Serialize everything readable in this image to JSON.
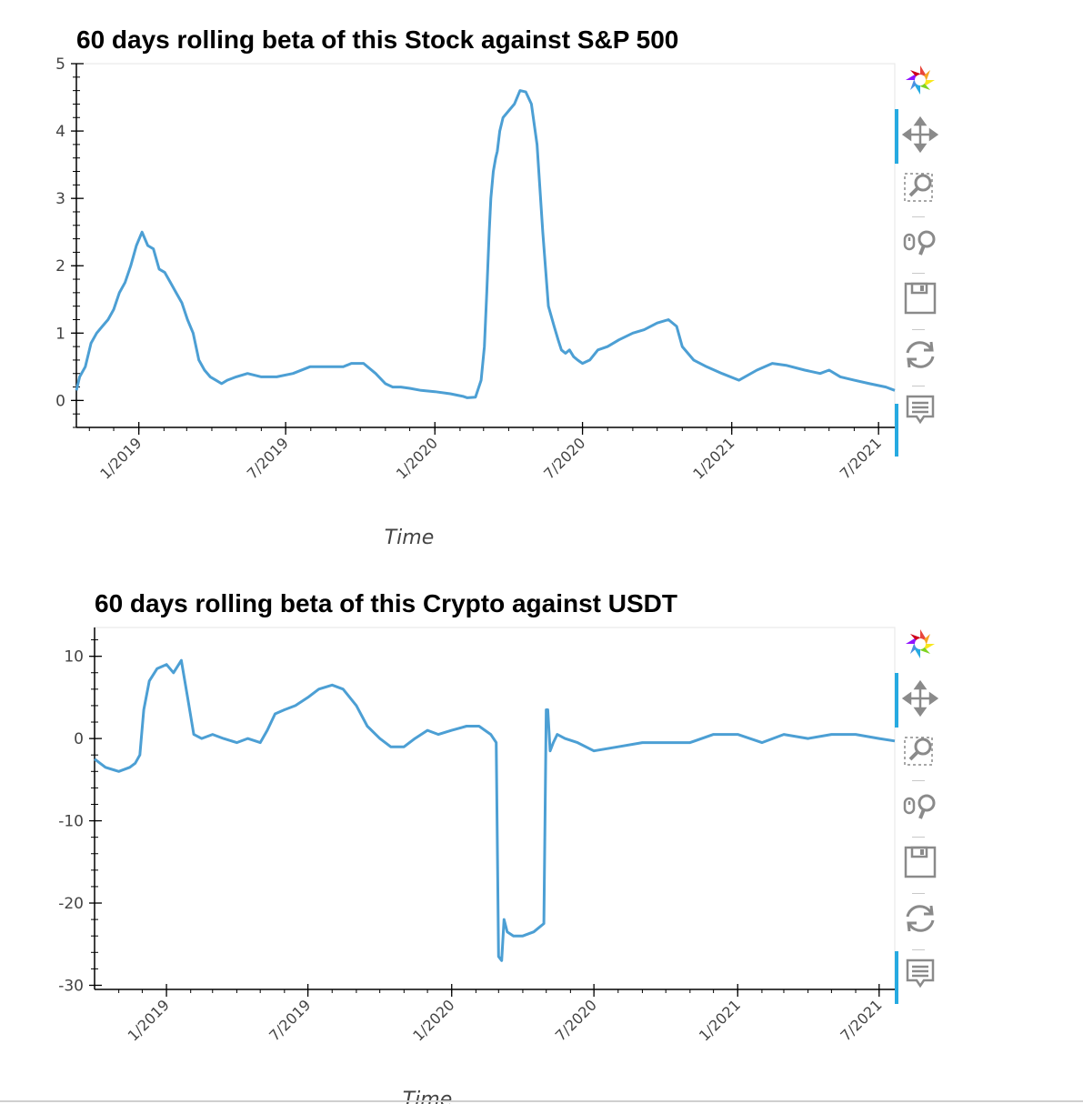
{
  "charts": [
    {
      "title": "60 days rolling beta of this Stock against S&P 500",
      "xlabel": "Time",
      "toolbar": [
        "bokeh-logo-icon",
        "pan-icon",
        "box-zoom-icon",
        "wheel-zoom-icon",
        "save-icon",
        "reset-icon",
        "hover-icon"
      ]
    },
    {
      "title": "60 days rolling beta of this Crypto against USDT",
      "xlabel": "Time",
      "toolbar": [
        "bokeh-logo-icon",
        "pan-icon",
        "box-zoom-icon",
        "wheel-zoom-icon",
        "save-icon",
        "reset-icon",
        "hover-icon"
      ]
    }
  ],
  "chart_data": [
    {
      "type": "line",
      "title": "60 days rolling beta of this Stock against S&P 500",
      "xlabel": "Time",
      "ylabel": "",
      "color": "#4c9fd4",
      "x_ticks": [
        "1/2019",
        "7/2019",
        "1/2020",
        "7/2020",
        "1/2021",
        "7/2021"
      ],
      "y_ticks": [
        "0",
        "1",
        "2",
        "3",
        "4",
        "5"
      ],
      "xlim": [
        "2018-10-16",
        "2021-07-21"
      ],
      "ylim": [
        -0.4,
        5.0
      ],
      "grid": false,
      "series": [
        {
          "x": [
            "2018-10-16",
            "2018-10-20",
            "2018-10-27",
            "2018-11-03",
            "2018-11-10",
            "2018-11-17",
            "2018-11-24",
            "2018-12-01",
            "2018-12-08",
            "2018-12-15",
            "2018-12-22",
            "2018-12-29",
            "2019-01-05",
            "2019-01-12",
            "2019-01-19",
            "2019-01-26",
            "2019-02-02",
            "2019-02-09",
            "2019-02-16",
            "2019-02-23",
            "2019-03-02",
            "2019-03-09",
            "2019-03-16",
            "2019-03-23",
            "2019-03-30",
            "2019-04-06",
            "2019-04-13",
            "2019-04-20",
            "2019-05-01",
            "2019-05-15",
            "2019-06-01",
            "2019-06-20",
            "2019-07-10",
            "2019-07-31",
            "2019-08-20",
            "2019-09-01",
            "2019-09-10",
            "2019-09-20",
            "2019-10-05",
            "2019-10-20",
            "2019-11-01",
            "2019-11-10",
            "2019-11-20",
            "2019-12-01",
            "2019-12-15",
            "2020-01-01",
            "2020-01-20",
            "2020-02-05",
            "2020-02-10",
            "2020-02-20",
            "2020-02-27",
            "2020-03-02",
            "2020-03-05",
            "2020-03-08",
            "2020-03-10",
            "2020-03-13",
            "2020-03-16",
            "2020-03-18",
            "2020-03-21",
            "2020-03-25",
            "2020-04-01",
            "2020-04-08",
            "2020-04-15",
            "2020-04-22",
            "2020-04-29",
            "2020-05-06",
            "2020-05-13",
            "2020-05-20",
            "2020-05-27",
            "2020-06-01",
            "2020-06-05",
            "2020-06-10",
            "2020-06-15",
            "2020-06-20",
            "2020-06-25",
            "2020-07-01",
            "2020-07-10",
            "2020-07-20",
            "2020-08-01",
            "2020-08-15",
            "2020-09-01",
            "2020-09-15",
            "2020-10-01",
            "2020-10-15",
            "2020-10-25",
            "2020-11-01",
            "2020-11-15",
            "2020-12-01",
            "2020-12-20",
            "2021-01-10",
            "2021-02-01",
            "2021-02-20",
            "2021-03-10",
            "2021-04-01",
            "2021-04-20",
            "2021-05-01",
            "2021-05-15",
            "2021-06-01",
            "2021-06-20",
            "2021-07-10",
            "2021-07-21"
          ],
          "y": [
            0.15,
            0.35,
            0.5,
            0.85,
            1.0,
            1.1,
            1.2,
            1.35,
            1.6,
            1.75,
            2.0,
            2.3,
            2.5,
            2.3,
            2.25,
            1.95,
            1.9,
            1.75,
            1.6,
            1.45,
            1.2,
            1.0,
            0.6,
            0.45,
            0.35,
            0.3,
            0.25,
            0.3,
            0.35,
            0.4,
            0.35,
            0.35,
            0.4,
            0.5,
            0.5,
            0.5,
            0.5,
            0.55,
            0.55,
            0.4,
            0.25,
            0.2,
            0.2,
            0.18,
            0.15,
            0.13,
            0.1,
            0.06,
            0.04,
            0.05,
            0.3,
            0.8,
            1.6,
            2.5,
            3.0,
            3.4,
            3.6,
            3.7,
            4.0,
            4.2,
            4.3,
            4.4,
            4.6,
            4.58,
            4.4,
            3.8,
            2.5,
            1.4,
            1.1,
            0.9,
            0.75,
            0.7,
            0.75,
            0.65,
            0.6,
            0.55,
            0.6,
            0.75,
            0.8,
            0.9,
            1.0,
            1.05,
            1.15,
            1.2,
            1.1,
            0.8,
            0.6,
            0.5,
            0.4,
            0.3,
            0.45,
            0.55,
            0.52,
            0.45,
            0.4,
            0.45,
            0.35,
            0.3,
            0.25,
            0.2,
            0.15
          ]
        }
      ]
    },
    {
      "type": "line",
      "title": "60 days rolling beta of this Crypto against USDT",
      "xlabel": "Time",
      "ylabel": "",
      "color": "#4c9fd4",
      "x_ticks": [
        "1/2019",
        "7/2019",
        "1/2020",
        "7/2020",
        "1/2021",
        "7/2021"
      ],
      "y_ticks": [
        "10",
        "0",
        "-10",
        "-20",
        "-30"
      ],
      "xlim": [
        "2018-10-01",
        "2021-07-21"
      ],
      "ylim": [
        -30.5,
        13.5
      ],
      "grid": false,
      "series": [
        {
          "x": [
            "2018-10-01",
            "2018-10-15",
            "2018-11-01",
            "2018-11-15",
            "2018-11-22",
            "2018-11-28",
            "2018-12-03",
            "2018-12-10",
            "2018-12-20",
            "2019-01-01",
            "2019-01-10",
            "2019-01-20",
            "2019-01-28",
            "2019-02-05",
            "2019-02-15",
            "2019-03-01",
            "2019-03-15",
            "2019-04-01",
            "2019-04-15",
            "2019-05-01",
            "2019-05-10",
            "2019-05-20",
            "2019-06-01",
            "2019-06-15",
            "2019-07-01",
            "2019-07-15",
            "2019-08-01",
            "2019-08-15",
            "2019-09-01",
            "2019-09-15",
            "2019-10-01",
            "2019-10-15",
            "2019-11-01",
            "2019-11-15",
            "2019-12-01",
            "2019-12-15",
            "2020-01-01",
            "2020-01-20",
            "2020-02-05",
            "2020-02-20",
            "2020-02-27",
            "2020-03-01",
            "2020-03-05",
            "2020-03-08",
            "2020-03-12",
            "2020-03-20",
            "2020-04-01",
            "2020-04-15",
            "2020-04-28",
            "2020-05-01",
            "2020-05-03",
            "2020-05-06",
            "2020-05-10",
            "2020-05-15",
            "2020-05-25",
            "2020-06-10",
            "2020-07-01",
            "2020-08-01",
            "2020-09-01",
            "2020-10-01",
            "2020-11-01",
            "2020-12-01",
            "2020-12-15",
            "2021-01-01",
            "2021-02-01",
            "2021-03-01",
            "2021-04-01",
            "2021-05-01",
            "2021-06-01",
            "2021-07-01",
            "2021-07-21"
          ],
          "y": [
            -2.5,
            -3.5,
            -4.0,
            -3.5,
            -3.0,
            -2.0,
            3.5,
            7.0,
            8.5,
            9.0,
            8.0,
            9.5,
            5.0,
            0.5,
            0.0,
            0.5,
            0.0,
            -0.5,
            0.0,
            -0.5,
            1.0,
            3.0,
            3.5,
            4.0,
            5.0,
            6.0,
            6.5,
            6.0,
            4.0,
            1.5,
            0.0,
            -1.0,
            -1.0,
            0.0,
            1.0,
            0.5,
            1.0,
            1.5,
            1.5,
            0.5,
            -0.5,
            -26.5,
            -27.0,
            -22.0,
            -23.5,
            -24.0,
            -24.0,
            -23.5,
            -22.5,
            3.5,
            3.5,
            -1.5,
            -0.5,
            0.5,
            0.0,
            -0.5,
            -1.5,
            -1.0,
            -0.5,
            -0.5,
            -0.5,
            0.5,
            0.5,
            0.5,
            -0.5,
            0.5,
            0.0,
            0.5,
            0.5,
            0.0,
            -0.3
          ]
        }
      ]
    }
  ]
}
